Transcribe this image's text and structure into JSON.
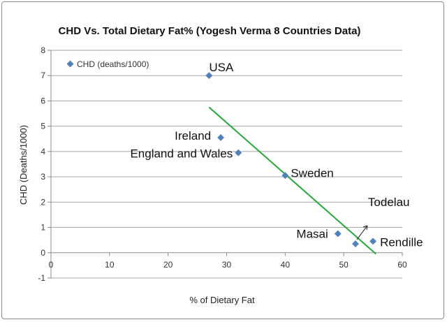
{
  "chart_data": {
    "type": "scatter",
    "title": "CHD Vs. Total Dietary Fat% (Yogesh Verma 8 Countries Data)",
    "xlabel": "% of Dietary Fat",
    "ylabel": "CHD (Deaths/1000)",
    "xlim": [
      0,
      60
    ],
    "ylim": [
      -1,
      8
    ],
    "x_ticks": [
      "0",
      "10",
      "20",
      "30",
      "40",
      "50",
      "60"
    ],
    "y_ticks": [
      "-1",
      "0",
      "1",
      "2",
      "3",
      "4",
      "5",
      "6",
      "7",
      "8"
    ],
    "grid": "horizontal",
    "legend_position": "top-left",
    "legend_label": "CHD (deaths/1000)",
    "marker_color": "#4f81bd",
    "trendline_color": "#22aa33",
    "series": [
      {
        "name": "CHD (deaths/1000)",
        "points": [
          {
            "x": 27,
            "y": 7.0,
            "label": "USA"
          },
          {
            "x": 29,
            "y": 4.55,
            "label": "Ireland"
          },
          {
            "x": 32,
            "y": 3.95,
            "label": "England and Wales"
          },
          {
            "x": 40,
            "y": 3.05,
            "label": "Sweden"
          },
          {
            "x": 49,
            "y": 0.75,
            "label": "Masai"
          },
          {
            "x": 52,
            "y": 0.35,
            "label": "Todelau"
          },
          {
            "x": 55,
            "y": 0.45,
            "label": "Rendille"
          }
        ]
      }
    ],
    "trendline": {
      "x": [
        27,
        55.5
      ],
      "y": [
        5.75,
        -0.05
      ]
    }
  }
}
